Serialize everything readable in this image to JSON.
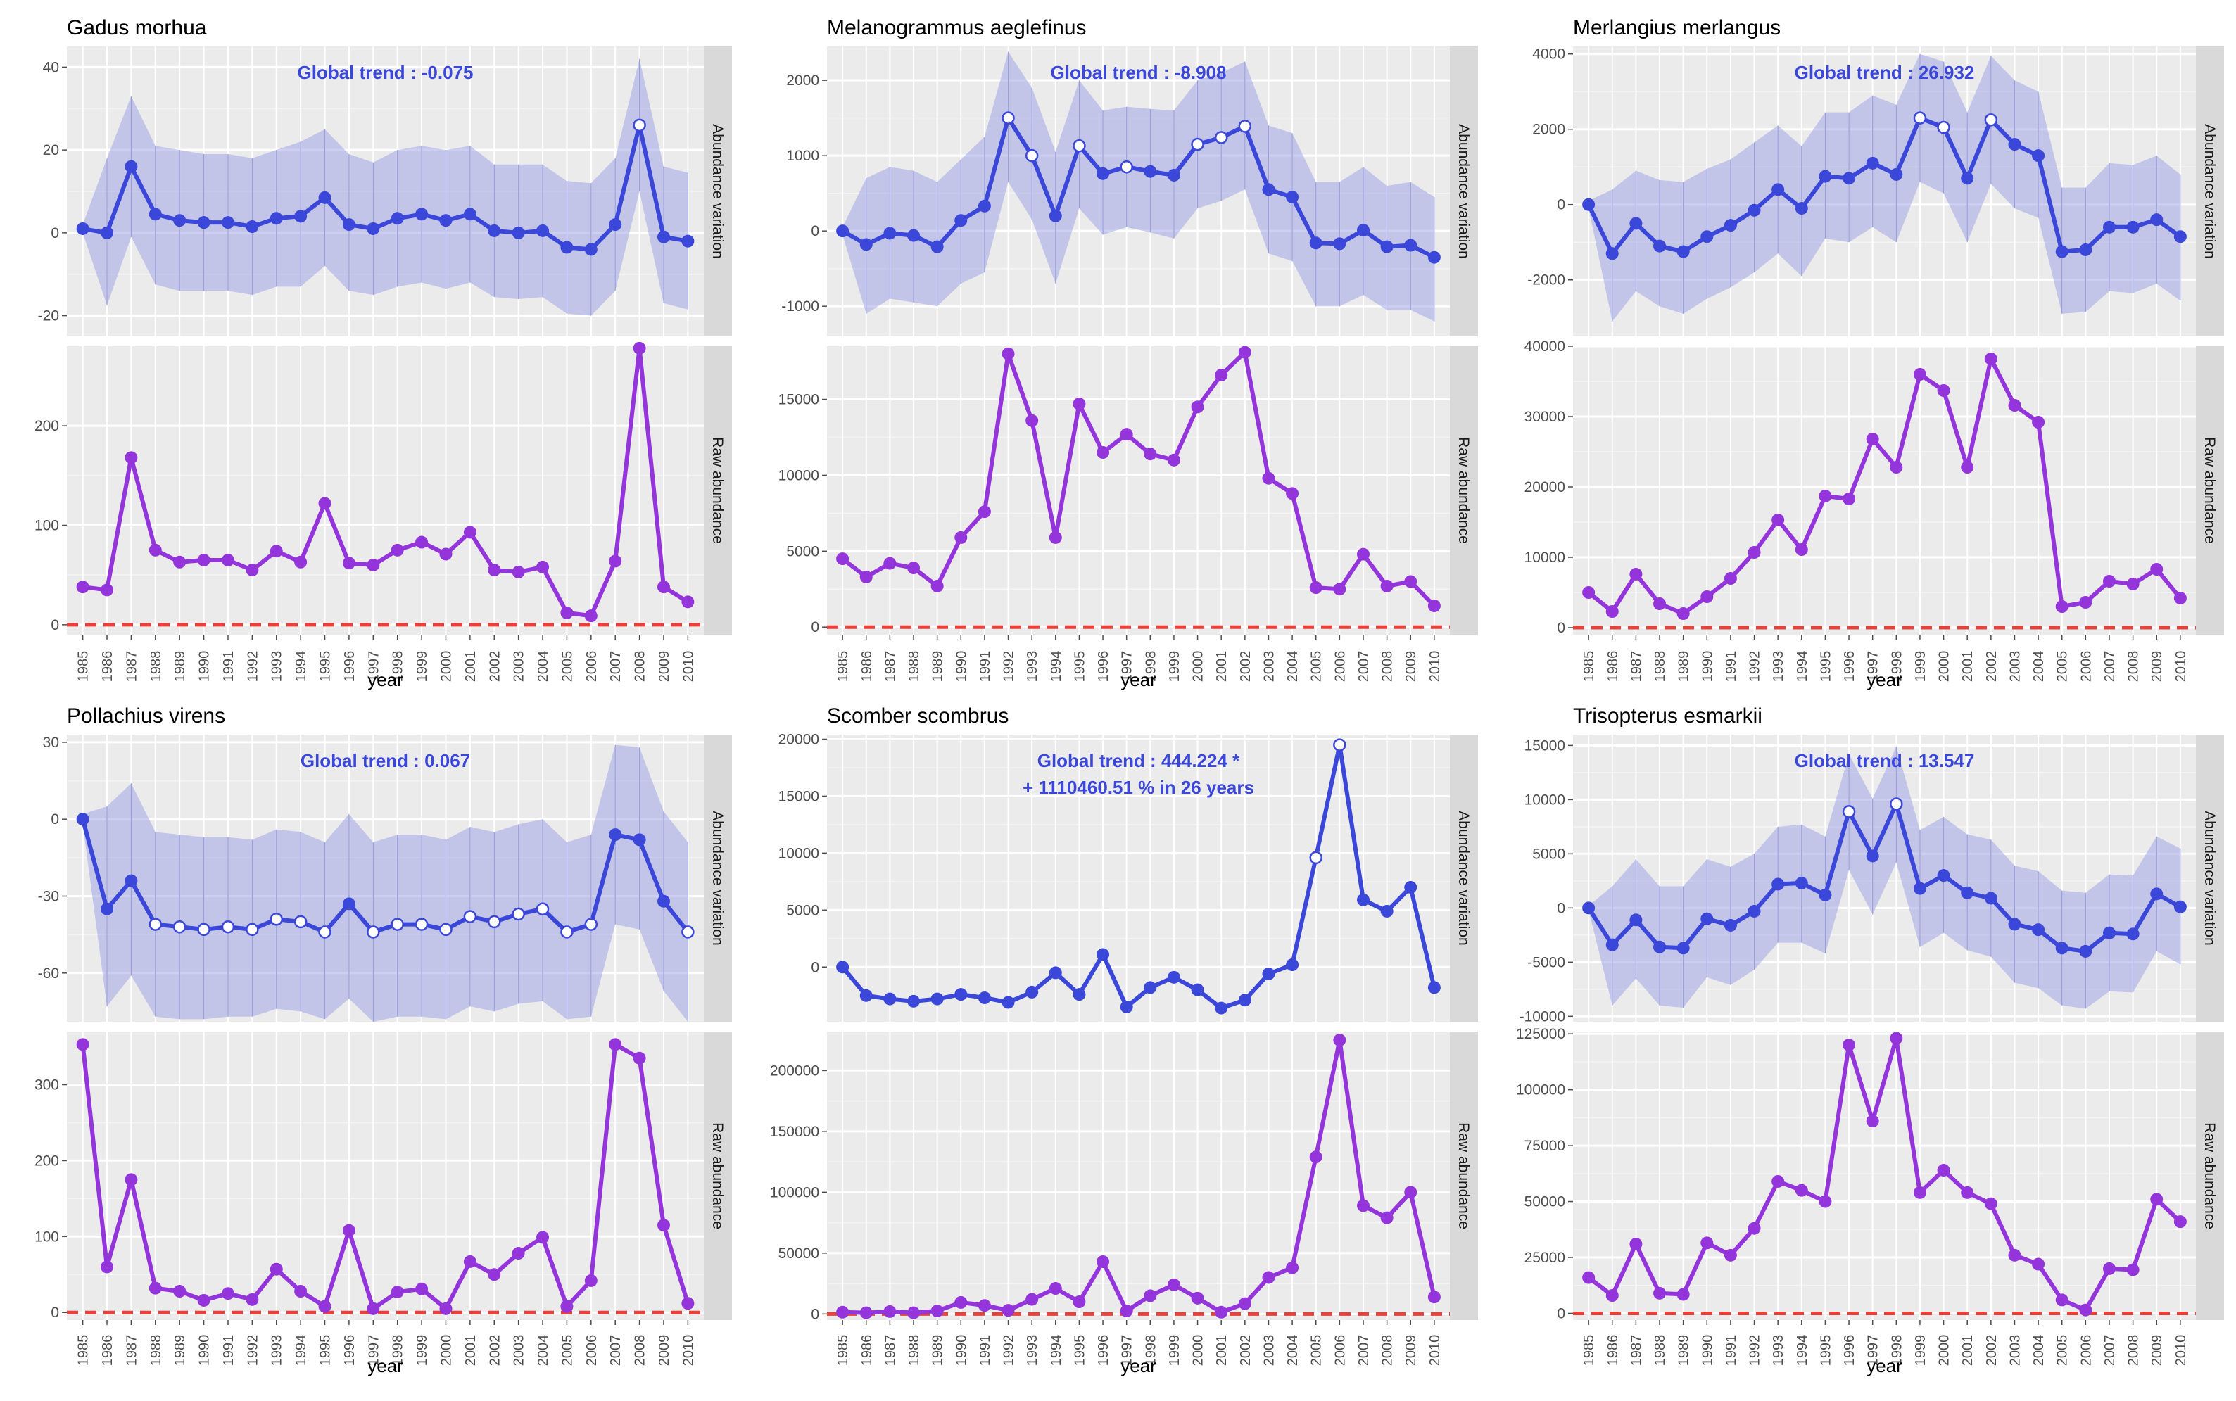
{
  "colors": {
    "panel_bg": "#ebebeb",
    "strip_bg": "#d9d9d9",
    "grid": "#ffffff",
    "variation_line": "#3a47d9",
    "band_fill": "#9b9fe6",
    "raw_line": "#9435dc",
    "zero_dashed": "#e8413c",
    "trend_text": "#3a47d9"
  },
  "xlabel": "year",
  "strip_labels": {
    "top": "Abundance variation",
    "bottom": "Raw abundance"
  },
  "chart_data": [
    {
      "type": "line",
      "title": "Gadus morhua",
      "global_trend": [
        "Global trend : -0.075"
      ],
      "x": [
        "1985",
        "1986",
        "1987",
        "1988",
        "1989",
        "1990",
        "1991",
        "1992",
        "1993",
        "1994",
        "1995",
        "1996",
        "1997",
        "1998",
        "1999",
        "2000",
        "2001",
        "2002",
        "2003",
        "2004",
        "2005",
        "2006",
        "2007",
        "2008",
        "2009",
        "2010"
      ],
      "variation": {
        "ylim": [
          -25,
          45
        ],
        "yticks": [
          -20,
          0,
          20,
          40
        ],
        "ytick_labels": [
          "-20",
          "0",
          "20",
          "40"
        ],
        "values": [
          1,
          0,
          16,
          4.5,
          3,
          2.5,
          2.5,
          1.5,
          3.5,
          4,
          8.5,
          2,
          1,
          3.5,
          4.5,
          3,
          4.5,
          0.5,
          0,
          0.5,
          -3.5,
          -4,
          2,
          26,
          -1,
          -2
        ],
        "upper": [
          2,
          18,
          33,
          21,
          20,
          19,
          19,
          18,
          20,
          22,
          25,
          19,
          17,
          20,
          21,
          20,
          21,
          16.5,
          16.5,
          16.5,
          12.5,
          12,
          18,
          42,
          16,
          14.5
        ],
        "lower": [
          0,
          -17.5,
          -1,
          -12.5,
          -14,
          -14,
          -14,
          -15,
          -13,
          -13,
          -8,
          -14,
          -15,
          -13,
          -12,
          -13.5,
          -12,
          -15.5,
          -16,
          -15.5,
          -19.5,
          -20,
          -14,
          10,
          -17,
          -18.5
        ],
        "open_points": [
          23
        ]
      },
      "raw": {
        "ylim": [
          -10,
          280
        ],
        "yticks": [
          0,
          100,
          200
        ],
        "ytick_labels": [
          "0",
          "100",
          "200"
        ],
        "values": [
          38,
          35,
          168,
          75,
          63,
          65,
          65,
          55,
          74,
          63,
          122,
          62,
          60,
          75,
          83,
          71,
          93,
          55,
          53,
          58,
          12,
          9,
          64,
          278,
          38,
          23
        ]
      }
    },
    {
      "type": "line",
      "title": "Melanogrammus aeglefinus",
      "global_trend": [
        "Global trend : -8.908"
      ],
      "x": [
        "1985",
        "1986",
        "1987",
        "1988",
        "1989",
        "1990",
        "1991",
        "1992",
        "1993",
        "1994",
        "1995",
        "1996",
        "1997",
        "1998",
        "1999",
        "2000",
        "2001",
        "2002",
        "2003",
        "2004",
        "2005",
        "2006",
        "2007",
        "2008",
        "2009",
        "2010"
      ],
      "variation": {
        "ylim": [
          -1400,
          2450
        ],
        "yticks": [
          -1000,
          0,
          1000,
          2000
        ],
        "ytick_labels": [
          "-1000",
          "0",
          "1000",
          "2000"
        ],
        "values": [
          0,
          -180,
          -30,
          -60,
          -210,
          140,
          330,
          1500,
          1000,
          200,
          1130,
          760,
          850,
          790,
          740,
          1150,
          1240,
          1390,
          550,
          450,
          -160,
          -170,
          10,
          -210,
          -190,
          -350
        ],
        "upper": [
          50,
          700,
          850,
          800,
          650,
          950,
          1250,
          2380,
          1900,
          1050,
          2000,
          1600,
          1650,
          1620,
          1600,
          2000,
          2100,
          2250,
          1400,
          1300,
          650,
          650,
          850,
          600,
          650,
          450
        ],
        "lower": [
          -50,
          -1100,
          -900,
          -950,
          -1000,
          -700,
          -550,
          650,
          150,
          -700,
          300,
          -50,
          50,
          -20,
          -100,
          300,
          400,
          550,
          -300,
          -400,
          -1000,
          -1000,
          -850,
          -1050,
          -1050,
          -1200
        ],
        "open_points": [
          7,
          8,
          10,
          12,
          15,
          16,
          17
        ]
      },
      "raw": {
        "ylim": [
          -500,
          18500
        ],
        "yticks": [
          0,
          5000,
          10000,
          15000
        ],
        "ytick_labels": [
          "0",
          "5000",
          "10000",
          "15000"
        ],
        "values": [
          4500,
          3300,
          4200,
          3900,
          2700,
          5900,
          7600,
          18000,
          13600,
          5900,
          14700,
          11500,
          12700,
          11400,
          11000,
          14500,
          16600,
          18100,
          9800,
          8800,
          2600,
          2500,
          4800,
          2700,
          3000,
          1400
        ]
      }
    },
    {
      "type": "line",
      "title": "Merlangius merlangus",
      "global_trend": [
        "Global trend : 26.932"
      ],
      "x": [
        "1985",
        "1986",
        "1987",
        "1988",
        "1989",
        "1990",
        "1991",
        "1992",
        "1993",
        "1994",
        "1995",
        "1996",
        "1997",
        "1998",
        "1999",
        "2000",
        "2001",
        "2002",
        "2003",
        "2004",
        "2005",
        "2006",
        "2007",
        "2008",
        "2009",
        "2010"
      ],
      "variation": {
        "ylim": [
          -3500,
          4200
        ],
        "yticks": [
          -2000,
          0,
          2000,
          4000
        ],
        "ytick_labels": [
          "-2000",
          "0",
          "2000",
          "4000"
        ],
        "values": [
          0,
          -1300,
          -500,
          -1100,
          -1250,
          -850,
          -550,
          -150,
          400,
          -100,
          750,
          700,
          1100,
          800,
          2300,
          2050,
          700,
          2250,
          1600,
          1300,
          -1250,
          -1200,
          -600,
          -600,
          -400,
          -850
        ],
        "upper": [
          100,
          400,
          900,
          650,
          600,
          950,
          1200,
          1650,
          2100,
          1550,
          2450,
          2450,
          2900,
          2650,
          4000,
          3800,
          2450,
          3950,
          3300,
          3000,
          450,
          450,
          1100,
          1050,
          1300,
          800
        ],
        "lower": [
          -100,
          -3100,
          -2300,
          -2700,
          -2900,
          -2500,
          -2200,
          -1800,
          -1300,
          -1900,
          -900,
          -1000,
          -600,
          -1000,
          600,
          300,
          -1000,
          550,
          -100,
          -350,
          -2900,
          -2850,
          -2300,
          -2350,
          -2100,
          -2550
        ],
        "open_points": [
          14,
          15,
          17
        ]
      },
      "raw": {
        "ylim": [
          -1000,
          40000
        ],
        "yticks": [
          0,
          10000,
          20000,
          30000,
          40000
        ],
        "ytick_labels": [
          "0",
          "10000",
          "20000",
          "30000",
          "40000"
        ],
        "values": [
          5000,
          2300,
          7600,
          3400,
          2000,
          4400,
          7000,
          10700,
          15300,
          11100,
          18700,
          18300,
          26800,
          22800,
          36000,
          33700,
          22800,
          38200,
          31600,
          29200,
          3000,
          3600,
          6600,
          6200,
          8300,
          4200
        ]
      }
    },
    {
      "type": "line",
      "title": "Pollachius virens",
      "global_trend": [
        "Global trend : 0.067"
      ],
      "x": [
        "1985",
        "1986",
        "1987",
        "1988",
        "1989",
        "1990",
        "1991",
        "1992",
        "1993",
        "1994",
        "1995",
        "1996",
        "1997",
        "1998",
        "1999",
        "2000",
        "2001",
        "2002",
        "2003",
        "2004",
        "2005",
        "2006",
        "2007",
        "2008",
        "2009",
        "2010"
      ],
      "variation": {
        "ylim": [
          -79,
          33
        ],
        "yticks": [
          -60,
          -30,
          0,
          30
        ],
        "ytick_labels": [
          "-60",
          "-30",
          "0",
          "30"
        ],
        "values": [
          0,
          -35,
          -24,
          -41,
          -42,
          -43,
          -42,
          -43,
          -39,
          -40,
          -44,
          -33,
          -44,
          -41,
          -41,
          -43,
          -38,
          -40,
          -37,
          -35,
          -44,
          -41,
          -6,
          -8,
          -32,
          -44
        ],
        "upper": [
          2,
          5,
          14,
          -5,
          -6,
          -7,
          -7,
          -8,
          -4,
          -5,
          -9,
          2,
          -9,
          -6,
          -6,
          -8,
          -3,
          -5,
          -2,
          0,
          -9,
          -6,
          29,
          28,
          3,
          -9
        ],
        "lower": [
          -2,
          -73,
          -61,
          -77,
          -78,
          -78,
          -77,
          -77,
          -74,
          -75,
          -78,
          -70,
          -79,
          -77,
          -77,
          -78,
          -73,
          -75,
          -72,
          -71,
          -78,
          -77,
          -41,
          -43,
          -67,
          -79
        ],
        "open_points": [
          3,
          4,
          5,
          6,
          7,
          8,
          9,
          10,
          12,
          13,
          14,
          15,
          16,
          17,
          18,
          19,
          20,
          21,
          25
        ]
      },
      "raw": {
        "ylim": [
          -10,
          370
        ],
        "yticks": [
          0,
          100,
          200,
          300
        ],
        "ytick_labels": [
          "0",
          "100",
          "200",
          "300"
        ],
        "values": [
          353,
          60,
          175,
          32,
          28,
          16,
          25,
          17,
          57,
          28,
          8,
          108,
          5,
          27,
          31,
          5,
          67,
          50,
          78,
          99,
          8,
          42,
          353,
          335,
          115,
          12
        ]
      }
    },
    {
      "type": "line",
      "title": "Scomber scombrus",
      "global_trend": [
        "Global trend : 444.224 *",
        "+ 1110460.51 % in 26 years"
      ],
      "x": [
        "1985",
        "1986",
        "1987",
        "1988",
        "1989",
        "1990",
        "1991",
        "1992",
        "1993",
        "1994",
        "1995",
        "1996",
        "1997",
        "1998",
        "1999",
        "2000",
        "2001",
        "2002",
        "2003",
        "2004",
        "2005",
        "2006",
        "2007",
        "2008",
        "2009",
        "2010"
      ],
      "variation": {
        "ylim": [
          -4800,
          20400
        ],
        "yticks": [
          0,
          5000,
          10000,
          15000,
          20000
        ],
        "ytick_labels": [
          "0",
          "5000",
          "10000",
          "15000",
          "20000"
        ],
        "values": [
          0,
          -2500,
          -2800,
          -3000,
          -2800,
          -2400,
          -2700,
          -3100,
          -2200,
          -500,
          -2400,
          1100,
          -3500,
          -1800,
          -900,
          -2000,
          -3600,
          -2900,
          -600,
          200,
          9600,
          19500,
          5900,
          4900,
          7000,
          -1800
        ],
        "open_points": [
          20,
          21
        ]
      },
      "raw": {
        "ylim": [
          -5000,
          232000
        ],
        "yticks": [
          0,
          50000,
          100000,
          150000,
          200000
        ],
        "ytick_labels": [
          "0",
          "50000",
          "100000",
          "150000",
          "200000"
        ],
        "values": [
          1500,
          1000,
          2000,
          1000,
          2500,
          9500,
          7000,
          3000,
          12000,
          21000,
          10000,
          43000,
          2500,
          15000,
          24000,
          13000,
          1500,
          8500,
          30000,
          38000,
          129000,
          225000,
          89000,
          79000,
          100000,
          14000
        ]
      }
    },
    {
      "type": "line",
      "title": "Trisopterus esmarkii",
      "global_trend": [
        "Global trend : 13.547"
      ],
      "x": [
        "1985",
        "1986",
        "1987",
        "1988",
        "1989",
        "1990",
        "1991",
        "1992",
        "1993",
        "1994",
        "1995",
        "1996",
        "1997",
        "1998",
        "1999",
        "2000",
        "2001",
        "2002",
        "2003",
        "2004",
        "2005",
        "2006",
        "2007",
        "2008",
        "2009",
        "2010"
      ],
      "variation": {
        "ylim": [
          -10500,
          16000
        ],
        "yticks": [
          -10000,
          -5000,
          0,
          5000,
          10000,
          15000
        ],
        "ytick_labels": [
          "-10000",
          "-5000",
          "0",
          "5000",
          "10000",
          "15000"
        ],
        "values": [
          0,
          -3400,
          -1100,
          -3600,
          -3700,
          -1000,
          -1600,
          -300,
          2200,
          2300,
          1200,
          8900,
          4800,
          9600,
          1800,
          3000,
          1400,
          900,
          -1500,
          -2000,
          -3700,
          -4000,
          -2300,
          -2400,
          1300,
          100
        ],
        "upper": [
          200,
          2000,
          4500,
          2000,
          2000,
          4500,
          3800,
          5000,
          7500,
          7700,
          6600,
          14200,
          10100,
          14900,
          7200,
          8400,
          6800,
          6300,
          3900,
          3400,
          1600,
          1400,
          3100,
          3000,
          6600,
          5500
        ],
        "lower": [
          -200,
          -9000,
          -6500,
          -9000,
          -9200,
          -6400,
          -7100,
          -5700,
          -3200,
          -3200,
          -4200,
          3500,
          -600,
          4200,
          -3600,
          -2300,
          -3900,
          -4500,
          -6900,
          -7400,
          -9000,
          -9300,
          -7700,
          -7800,
          -4000,
          -5200
        ],
        "open_points": [
          11,
          13
        ]
      },
      "raw": {
        "ylim": [
          -3000,
          126000
        ],
        "yticks": [
          0,
          25000,
          50000,
          75000,
          100000,
          125000
        ],
        "ytick_labels": [
          "0",
          "25000",
          "50000",
          "75000",
          "100000",
          "125000"
        ],
        "values": [
          16000,
          8000,
          31000,
          9000,
          8500,
          31500,
          26000,
          38000,
          59000,
          55000,
          50000,
          120000,
          86000,
          123000,
          54000,
          64000,
          54000,
          49000,
          26000,
          22000,
          6000,
          1500,
          20000,
          19500,
          51000,
          41000
        ]
      }
    }
  ]
}
